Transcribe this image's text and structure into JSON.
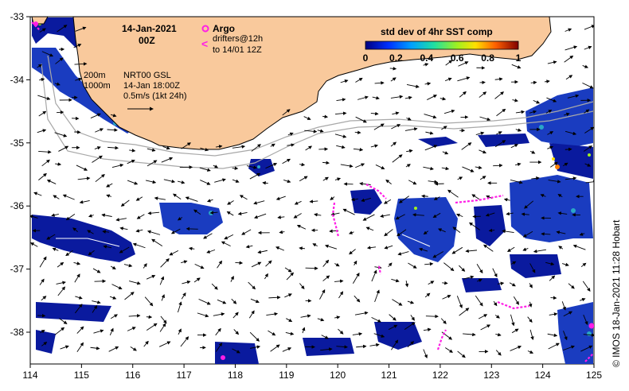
{
  "title": {
    "date": "14-Jan-2021",
    "time": "00Z"
  },
  "legend": {
    "argo_label": "Argo",
    "drifters_line1": "drifters@12h",
    "drifters_line2": "to 14/01 12Z",
    "drifter_symbol": "<",
    "colorbar_title": "std dev of 4hr SST comp",
    "colorbar_ticks": [
      "0",
      "0.2",
      "0.4",
      "0.6",
      "0.8",
      "1"
    ]
  },
  "annotations": {
    "depth_200": "200m",
    "depth_1000": "1000m",
    "product": "NRT00 GSL",
    "product_time": "14-Jan 18:00Z",
    "scale_text": "0.5m/s (1kt 24h)"
  },
  "axes": {
    "x_ticks": [
      "114",
      "115",
      "116",
      "117",
      "118",
      "119",
      "120",
      "121",
      "122",
      "123",
      "124",
      "125"
    ],
    "y_ticks": [
      "-33",
      "-34",
      "-35",
      "-36",
      "-37",
      "-38"
    ]
  },
  "credit": "© IMOS 18-Jan-2021 11:28 Hobart",
  "colors": {
    "land": "#f9c99c",
    "ocean": "#ffffff",
    "data_dark": "#0a1a9e",
    "data_mid": "#1e4fd6",
    "data_light": "#2aa6c8",
    "drifter": "#ff1ee6",
    "argo": "#ff1ee6",
    "arrow": "#000000",
    "isobath": "#a8a8a8"
  }
}
